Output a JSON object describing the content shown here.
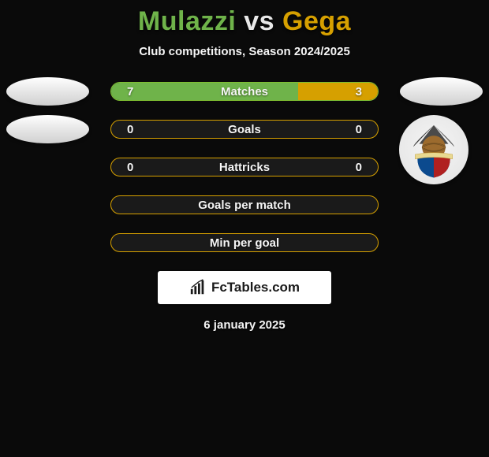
{
  "title": {
    "player1": "Mulazzi",
    "vs": "vs",
    "player2": "Gega"
  },
  "subtitle": "Club competitions, Season 2024/2025",
  "colors": {
    "green_title": "#6fb34a",
    "yellow_title": "#d6a000",
    "green_border": "#7fbf32",
    "yellow_border": "#d6a000",
    "green_fill": "#6fb34a",
    "yellow_fill": "#d6a000",
    "bar_bg": "#1a1a1a"
  },
  "rows": [
    {
      "label": "Matches",
      "left_val": "7",
      "right_val": "3",
      "left_pct": 70,
      "right_pct": 30,
      "has_values": true,
      "has_fill": true,
      "border_color": "#7fbf32",
      "show_left_oval": true,
      "show_right_oval": true
    },
    {
      "label": "Goals",
      "left_val": "0",
      "right_val": "0",
      "left_pct": 0,
      "right_pct": 0,
      "has_values": true,
      "has_fill": false,
      "border_color": "#d6a000",
      "show_left_oval": true,
      "show_right_oval": false,
      "show_crest": true
    },
    {
      "label": "Hattricks",
      "left_val": "0",
      "right_val": "0",
      "left_pct": 0,
      "right_pct": 0,
      "has_values": true,
      "has_fill": false,
      "border_color": "#d6a000"
    },
    {
      "label": "Goals per match",
      "has_values": false,
      "has_fill": false,
      "border_color": "#d6a000"
    },
    {
      "label": "Min per goal",
      "has_values": false,
      "has_fill": false,
      "border_color": "#d6a000"
    }
  ],
  "branding": "FcTables.com",
  "date": "6 january 2025",
  "crest": {
    "ribbon_text": "",
    "shield_blue": "#0b4a8e",
    "shield_red": "#b02020",
    "ball_color": "#9c6b2e",
    "crater_color": "#3a3a3a"
  }
}
